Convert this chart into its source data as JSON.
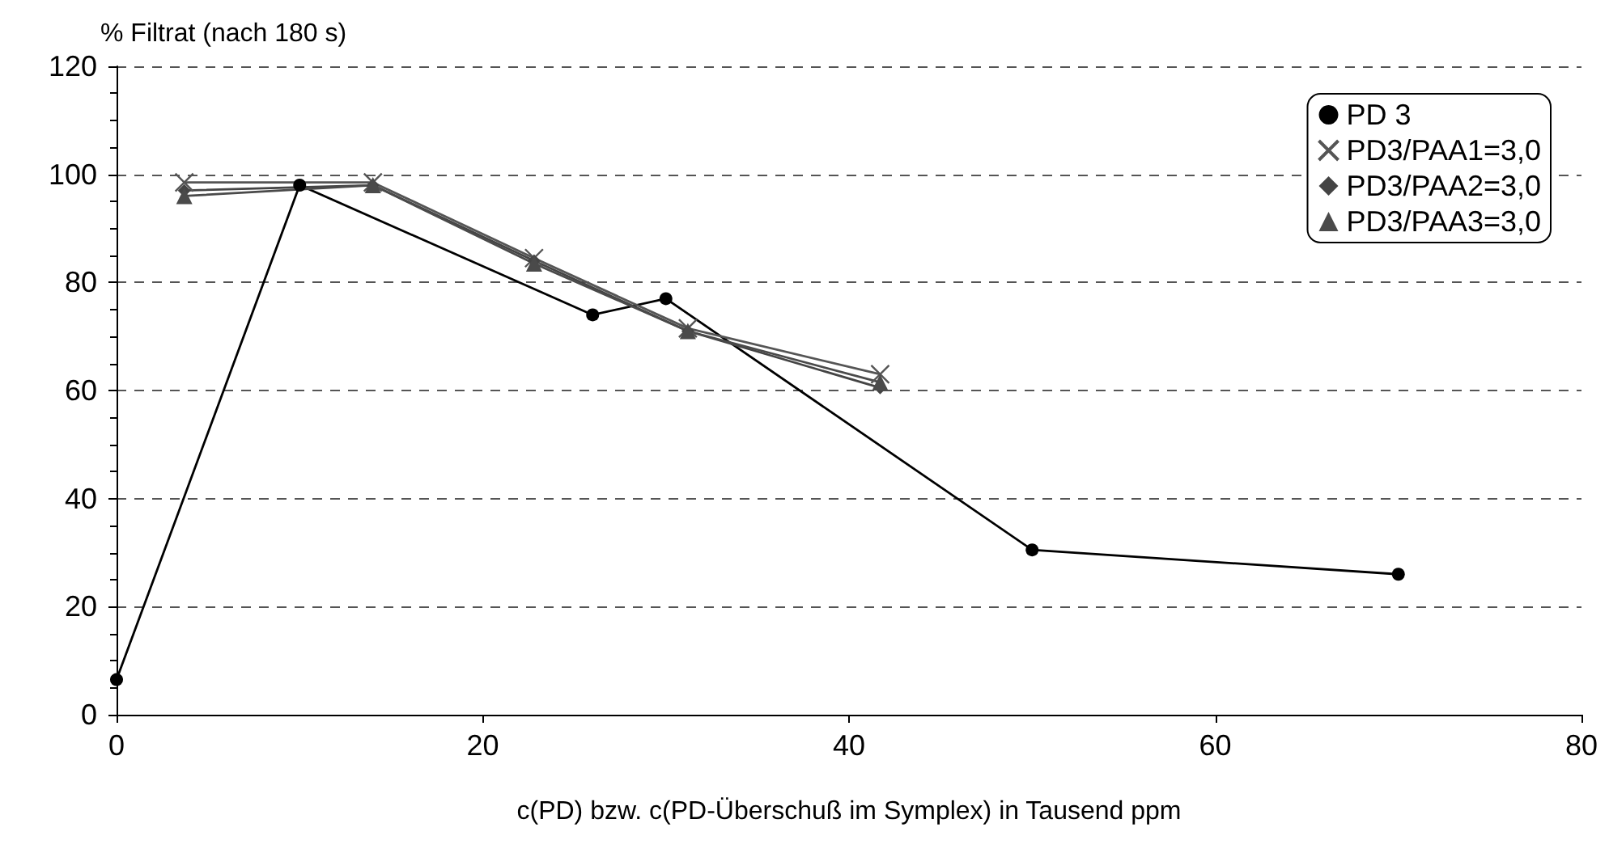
{
  "chart_data": {
    "type": "line",
    "xlabel": "c(PD) bzw. c(PD-Überschuß im Symplex) in Tausend ppm",
    "ylabel": "% Filtrat (nach 180 s)",
    "xlim": [
      0,
      80
    ],
    "xticks": [
      0,
      20,
      40,
      60,
      80
    ],
    "ylim": [
      0,
      120
    ],
    "yticks": [
      0,
      20,
      40,
      60,
      80,
      100,
      120
    ],
    "grid": "y",
    "legend": "top right",
    "line_style": "solid",
    "series": [
      {
        "name": "PD 3",
        "color": "#000000",
        "marker": "circle",
        "x": [
          0,
          10,
          26,
          30,
          50,
          70
        ],
        "values": [
          6.5,
          98,
          74,
          77,
          30.5,
          26
        ]
      },
      {
        "name": "PD3/PAA1=3,0",
        "color": "#555555",
        "marker": "cross",
        "x": [
          3.7,
          14,
          22.8,
          31.2,
          41.7
        ],
        "values": [
          98.5,
          98.5,
          84.5,
          71.5,
          63
        ]
      },
      {
        "name": "PD3/PAA2=3,0",
        "color": "#444444",
        "marker": "diamond",
        "x": [
          3.7,
          14,
          22.8,
          31.2,
          41.7
        ],
        "values": [
          97,
          98,
          84,
          71,
          60.5
        ]
      },
      {
        "name": "PD3/PAA3=3,0",
        "color": "#4a4a4a",
        "marker": "triangle",
        "x": [
          3.7,
          14,
          22.8,
          31.2,
          41.7
        ],
        "values": [
          96,
          98,
          83.5,
          71,
          61.5
        ]
      }
    ]
  }
}
